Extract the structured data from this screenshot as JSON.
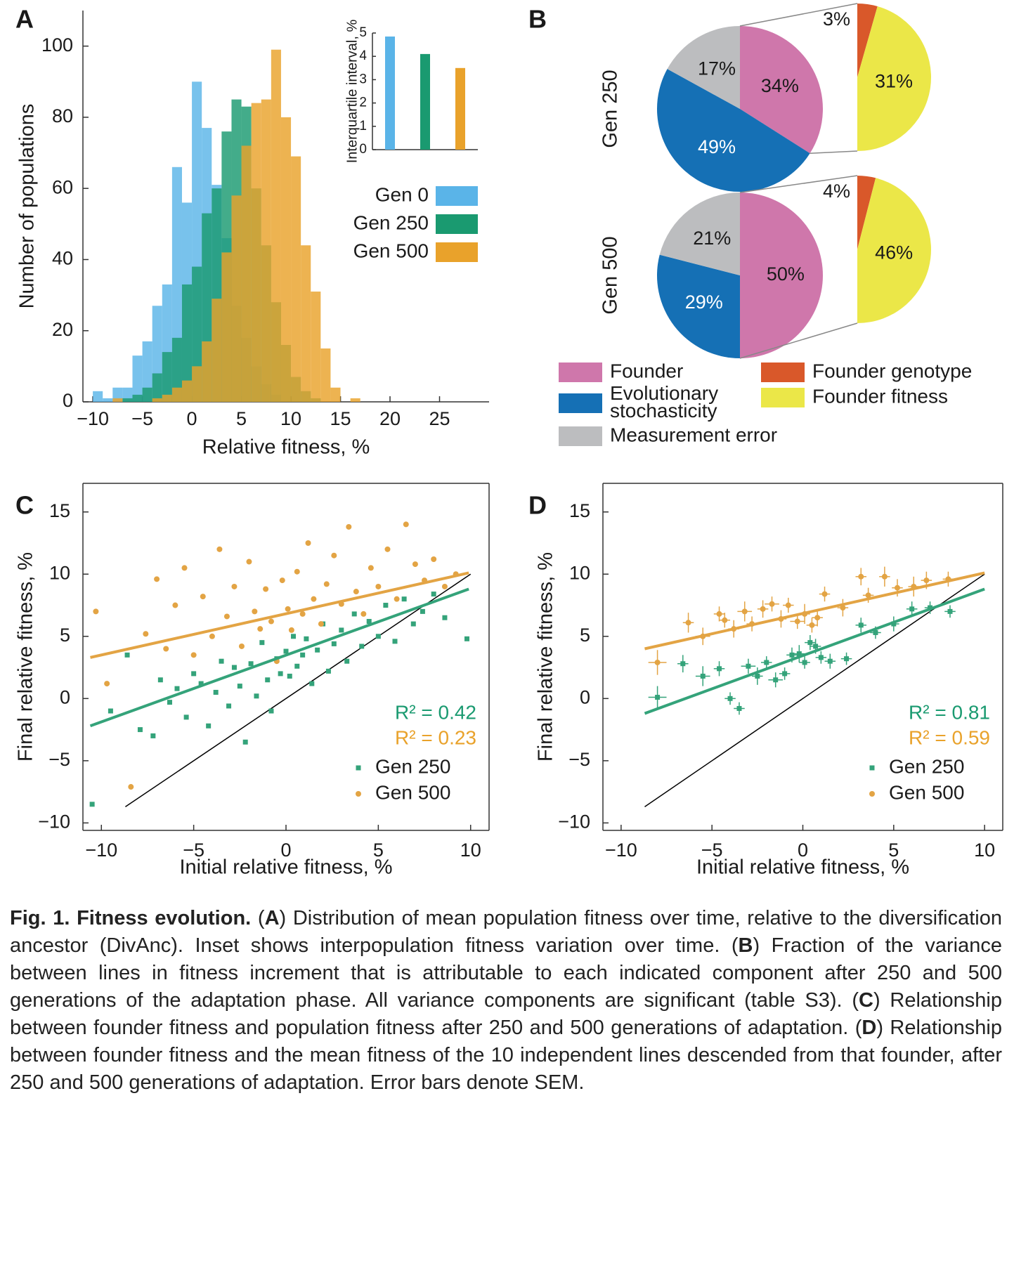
{
  "chart_data": [
    {
      "type": "histogram",
      "panel": "A",
      "xlabel": "Relative fitness, %",
      "ylabel": "Number of populations",
      "bins": [
        -10,
        -9,
        -8,
        -7,
        -6,
        -5,
        -4,
        -3,
        -2,
        -1,
        0,
        1,
        2,
        3,
        4,
        5,
        6,
        7,
        8,
        9,
        10,
        11,
        12,
        13,
        14,
        15,
        16,
        17
      ],
      "series": [
        {
          "name": "Gen 0",
          "color": "#5ab4e8",
          "values": [
            3,
            1,
            4,
            4,
            13,
            17,
            27,
            33,
            66,
            56,
            90,
            77,
            61,
            46,
            27,
            18,
            10,
            5,
            2,
            0,
            0,
            0,
            0,
            0,
            0,
            0,
            0
          ]
        },
        {
          "name": "Gen 250",
          "color": "#1a9a70",
          "values": [
            0,
            0,
            0,
            1,
            2,
            4,
            8,
            14,
            18,
            33,
            38,
            53,
            60,
            76,
            85,
            83,
            60,
            44,
            28,
            16,
            7,
            3,
            1,
            0,
            0,
            0,
            0
          ]
        },
        {
          "name": "Gen 500",
          "color": "#e9a22b",
          "values": [
            0,
            0,
            1,
            0,
            0,
            0,
            1,
            2,
            4,
            6,
            10,
            17,
            29,
            42,
            58,
            72,
            84,
            85,
            99,
            80,
            69,
            44,
            31,
            15,
            4,
            0,
            1
          ]
        }
      ],
      "xlim": [
        -11,
        30
      ],
      "ylim": [
        0,
        110
      ],
      "xticks": [
        {
          "value": -10,
          "label": "−10"
        },
        {
          "value": -5,
          "label": "−5"
        },
        0,
        5,
        10,
        15,
        20,
        25
      ],
      "yticks": [
        0,
        20,
        40,
        60,
        80,
        100
      ]
    },
    {
      "type": "bar",
      "ylabel": "Interquartile interval, %",
      "categories": [
        null,
        null,
        null
      ],
      "values": [
        4.85,
        4.1,
        3.5
      ],
      "colors": [
        "#5ab4e8",
        "#1a9a70",
        "#e9a22b"
      ],
      "ylim": [
        0,
        5
      ],
      "yticks": [
        0,
        1,
        2,
        3,
        4,
        5
      ]
    },
    {
      "type": "pie",
      "panel": "B",
      "categories": [
        "Founder",
        "Evolutionary stochasticity",
        "Measurement error"
      ],
      "colors": [
        "#cf77ab",
        "#1570b5",
        "#bcbdbf"
      ],
      "subcategories": [
        "Founder genotype",
        "Founder fitness"
      ],
      "subcolors": [
        "#d9582a",
        "#ebe748"
      ],
      "pies": [
        {
          "title": "Gen 250",
          "values": [
            34,
            49,
            17
          ],
          "value_labels": [
            "34%",
            "49%",
            "17%"
          ],
          "sub_values": [
            3,
            31
          ],
          "sub_value_labels": [
            "3%",
            "31%"
          ]
        },
        {
          "title": "Gen 500",
          "values": [
            50,
            29,
            21
          ],
          "value_labels": [
            "50%",
            "29%",
            "21%"
          ],
          "sub_values": [
            4,
            46
          ],
          "sub_value_labels": [
            "4%",
            "46%"
          ]
        }
      ]
    },
    {
      "type": "scatter",
      "panel": "C",
      "xlabel": "Initial relative fitness, %",
      "ylabel": "Final relative fitness, %",
      "xlim": [
        -11,
        11
      ],
      "ylim": [
        -10.6,
        17.3
      ],
      "xticks": [
        {
          "value": -10,
          "label": "−10"
        },
        {
          "value": -5,
          "label": "−5"
        },
        0,
        5,
        10
      ],
      "yticks": [
        {
          "value": -10,
          "label": "−10"
        },
        {
          "value": -5,
          "label": "−5"
        },
        0,
        5,
        10,
        15
      ],
      "reference_line": {
        "x": [
          -8.7,
          10
        ],
        "y": [
          -8.7,
          10
        ],
        "color": "#000000"
      },
      "series": [
        {
          "name": "Gen 250",
          "color": "#34a37a",
          "marker": "square",
          "x": [
            -10.5,
            -9.5,
            -8.6,
            -7.9,
            -7.2,
            -6.8,
            -6.3,
            -5.9,
            -5.4,
            -5.0,
            -4.6,
            -4.2,
            -3.8,
            -3.5,
            -3.1,
            -2.8,
            -2.5,
            -2.2,
            -1.9,
            -1.6,
            -1.3,
            -1.0,
            -0.8,
            -0.5,
            -0.3,
            0,
            0.2,
            0.4,
            0.6,
            0.9,
            1.1,
            1.4,
            1.7,
            2.0,
            2.3,
            2.6,
            3.0,
            3.3,
            3.7,
            4.1,
            4.5,
            5.0,
            5.4,
            5.9,
            6.4,
            6.9,
            7.4,
            8.0,
            8.6,
            9.8
          ],
          "values": [
            -8.5,
            -1.0,
            3.5,
            -2.5,
            -3.0,
            1.5,
            -0.3,
            0.8,
            -1.5,
            2.0,
            1.2,
            -2.2,
            0.5,
            3.0,
            -0.6,
            2.5,
            1.0,
            -3.5,
            2.8,
            0.2,
            4.5,
            1.5,
            -1.0,
            3.2,
            2.0,
            3.8,
            1.8,
            5.0,
            2.6,
            3.5,
            4.8,
            1.2,
            3.9,
            6.0,
            2.2,
            4.4,
            5.5,
            3.0,
            6.8,
            4.2,
            6.2,
            5.0,
            7.5,
            4.6,
            8.0,
            6.0,
            7.0,
            8.4,
            6.5,
            4.8
          ],
          "fit_x": [
            -10.6,
            9.9
          ],
          "fit_y": [
            -2.2,
            8.8
          ]
        },
        {
          "name": "Gen 500",
          "color": "#e3a444",
          "marker": "circle",
          "x": [
            -10.3,
            -9.7,
            -8.4,
            -7.6,
            -7.0,
            -6.5,
            -6.0,
            -5.5,
            -5.0,
            -4.5,
            -4.0,
            -3.6,
            -3.2,
            -2.8,
            -2.4,
            -2.0,
            -1.7,
            -1.4,
            -1.1,
            -0.8,
            -0.5,
            -0.2,
            0.1,
            0.3,
            0.6,
            0.9,
            1.2,
            1.5,
            1.9,
            2.2,
            2.6,
            3.0,
            3.4,
            3.8,
            4.2,
            4.6,
            5.0,
            5.5,
            6.0,
            6.5,
            7.0,
            7.5,
            8.0,
            8.6,
            9.2
          ],
          "values": [
            7.0,
            1.2,
            -7.1,
            5.2,
            9.6,
            4.0,
            7.5,
            10.5,
            3.5,
            8.2,
            5.0,
            12.0,
            6.6,
            9.0,
            4.2,
            11.0,
            7.0,
            5.6,
            8.8,
            6.2,
            3.0,
            9.5,
            7.2,
            5.5,
            10.2,
            6.8,
            12.5,
            8.0,
            6.0,
            9.2,
            11.5,
            7.6,
            13.8,
            8.6,
            6.8,
            10.5,
            9.0,
            12.0,
            8.0,
            14.0,
            10.8,
            9.5,
            11.2,
            9.0,
            10.0
          ],
          "fit_x": [
            -10.6,
            9.9
          ],
          "fit_y": [
            3.3,
            10.1
          ]
        }
      ],
      "annotations": [
        {
          "text": "R² = 0.42",
          "color": "#1a9a70"
        },
        {
          "text": "R² = 0.23",
          "color": "#e9a22b"
        }
      ]
    },
    {
      "type": "scatter",
      "panel": "D",
      "xlabel": "Initial relative fitness, %",
      "ylabel": "Final relative fitness, %",
      "xlim": [
        -11,
        11
      ],
      "ylim": [
        -10.6,
        17.3
      ],
      "xticks": [
        {
          "value": -10,
          "label": "−10"
        },
        {
          "value": -5,
          "label": "−5"
        },
        0,
        5,
        10
      ],
      "yticks": [
        {
          "value": -10,
          "label": "−10"
        },
        {
          "value": -5,
          "label": "−5"
        },
        0,
        5,
        10,
        15
      ],
      "reference_line": {
        "x": [
          -8.7,
          10
        ],
        "y": [
          -8.7,
          10
        ],
        "color": "#000000"
      },
      "series": [
        {
          "name": "Gen 250",
          "color": "#34a37a",
          "marker": "square",
          "x": [
            -8.0,
            -6.6,
            -5.5,
            -4.6,
            -4.0,
            -3.5,
            -3.0,
            -2.5,
            -2.0,
            -1.5,
            -1.0,
            -0.6,
            -0.2,
            0.1,
            0.4,
            0.7,
            1.0,
            1.5,
            2.4,
            3.2,
            4.0,
            5.0,
            6.0,
            7.0,
            8.1
          ],
          "values": [
            0.1,
            2.8,
            1.8,
            2.4,
            0.0,
            -0.8,
            2.6,
            1.8,
            2.9,
            1.5,
            2.0,
            3.5,
            3.6,
            2.9,
            4.5,
            4.2,
            3.3,
            3.0,
            3.2,
            5.9,
            5.3,
            6.0,
            7.2,
            7.3,
            7.0
          ],
          "xerr": [
            0.5,
            0.3,
            0.4,
            0.3,
            0.3,
            0.3,
            0.4,
            0.3,
            0.3,
            0.4,
            0.3,
            0.3,
            0.4,
            0.3,
            0.3,
            0.3,
            0.3,
            0.3,
            0.3,
            0.3,
            0.3,
            0.3,
            0.3,
            0.3,
            0.3
          ],
          "yerr": [
            0.9,
            0.7,
            0.8,
            0.6,
            0.5,
            0.5,
            0.6,
            0.7,
            0.5,
            0.6,
            0.5,
            0.6,
            0.7,
            0.5,
            0.6,
            0.6,
            0.5,
            0.6,
            0.5,
            0.6,
            0.5,
            0.6,
            0.6,
            0.5,
            0.5
          ],
          "fit_x": [
            -8.7,
            10
          ],
          "fit_y": [
            -1.2,
            8.8
          ]
        },
        {
          "name": "Gen 500",
          "color": "#e3a444",
          "marker": "circle",
          "x": [
            -8.0,
            -6.3,
            -5.5,
            -4.6,
            -4.3,
            -3.8,
            -3.2,
            -2.8,
            -2.2,
            -1.7,
            -1.2,
            -0.8,
            -0.3,
            0.1,
            0.5,
            0.8,
            1.2,
            2.2,
            3.2,
            3.6,
            4.5,
            5.2,
            6.1,
            6.8,
            8.0
          ],
          "values": [
            2.9,
            6.1,
            5.0,
            6.8,
            6.3,
            5.6,
            7.0,
            6.0,
            7.2,
            7.6,
            6.4,
            7.5,
            6.2,
            6.8,
            5.9,
            6.5,
            8.4,
            7.3,
            9.8,
            8.3,
            9.8,
            8.9,
            9.0,
            9.5,
            9.6
          ],
          "xerr": [
            0.5,
            0.3,
            0.4,
            0.3,
            0.3,
            0.3,
            0.4,
            0.3,
            0.3,
            0.4,
            0.3,
            0.3,
            0.4,
            0.3,
            0.3,
            0.3,
            0.3,
            0.3,
            0.3,
            0.3,
            0.3,
            0.3,
            0.3,
            0.3,
            0.3
          ],
          "yerr": [
            1.0,
            0.8,
            0.7,
            0.6,
            0.6,
            0.7,
            0.8,
            0.6,
            0.7,
            0.6,
            0.7,
            0.6,
            0.6,
            0.8,
            0.6,
            0.7,
            0.6,
            0.7,
            0.7,
            0.6,
            0.8,
            0.7,
            0.8,
            0.7,
            0.6
          ],
          "fit_x": [
            -8.7,
            10
          ],
          "fit_y": [
            4.0,
            10.1
          ]
        }
      ],
      "annotations": [
        {
          "text": "R² = 0.81",
          "color": "#1a9a70"
        },
        {
          "text": "R² = 0.59",
          "color": "#e9a22b"
        }
      ]
    }
  ],
  "caption": {
    "segments": [
      {
        "text": "Fig. 1. Fitness evolution.",
        "bold": true
      },
      {
        "text": " (",
        "bold": false
      },
      {
        "text": "A",
        "bold": true
      },
      {
        "text": ") Distribution of mean population fitness over time, relative to the diversification ancestor (DivAnc). Inset shows interpopulation fitness variation over time. (",
        "bold": false
      },
      {
        "text": "B",
        "bold": true
      },
      {
        "text": ") Fraction of the variance between lines in fitness increment that is attributable to each indicated component after 250 and 500 generations of the adaptation phase. All variance components are significant (table S3). (",
        "bold": false
      },
      {
        "text": "C",
        "bold": true
      },
      {
        "text": ") Relationship between founder fitness and population fitness after 250 and 500 generations of adaptation. (",
        "bold": false
      },
      {
        "text": "D",
        "bold": true
      },
      {
        "text": ") Relationship between founder fitness and the mean fitness of the 10 independent lines descended from that founder, after 250 and 500 generations of adaptation. Error bars denote SEM.",
        "bold": false
      }
    ]
  }
}
